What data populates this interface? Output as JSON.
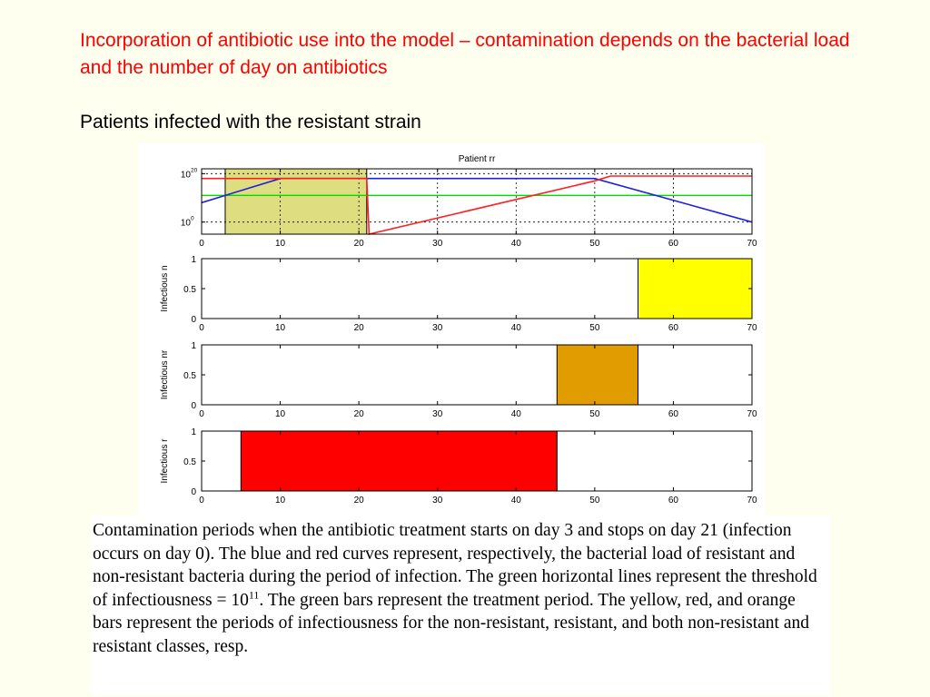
{
  "slide": {
    "title": "Incorporation of antibiotic use into the model – contamination depends on the bacterial load and the number of day on antibiotics",
    "subtitle": "Patients infected with the resistant strain"
  },
  "caption": {
    "part1": "Contamination periods when the antibiotic treatment starts on day 3 and stops on day 21 (infection occurs on day 0). The blue and red curves represent, respectively, the bacterial load of resistant and non-resistant bacteria during the period of infection. The green horizontal lines represent the threshold of infectiousness = 10",
    "exponent": "11",
    "part2": ". The green bars represent the treatment period. The yellow, red, and orange bars represent the periods of infectiousness for the non-resistant, resistant, and both non-resistant and resistant classes, resp."
  },
  "colors": {
    "title": "#ff0000",
    "treatment": "#dede80",
    "resistant_curve": "#2020e0",
    "nonresistant_curve": "#ff2020",
    "threshold": "#00dd00",
    "bar_n": "#ffff00",
    "bar_nr": "#e09c00",
    "bar_r": "#ff0000"
  },
  "chart_data": [
    {
      "type": "line",
      "title": "Patient rr",
      "xlim": [
        0,
        70
      ],
      "x_ticks": [
        0,
        10,
        20,
        30,
        40,
        50,
        60,
        70
      ],
      "y_scale": "log",
      "ylim_exp": [
        -5,
        22
      ],
      "y_ticks": [
        {
          "exp": 20,
          "label": "10",
          "sup": "20"
        },
        {
          "exp": 0,
          "label": "10",
          "sup": "0"
        }
      ],
      "grid": "dotted, at x=10,20,30,40,50,60 and y=10^20, 10^0",
      "treatment_period": [
        3,
        21
      ],
      "threshold_exp": 11,
      "series": [
        {
          "id": "resistant",
          "color": "#2020e0",
          "points": [
            [
              0,
              8
            ],
            [
              10,
              18
            ],
            [
              20,
              18
            ],
            [
              50,
              18
            ],
            [
              70,
              0
            ]
          ]
        },
        {
          "id": "non_resistant",
          "color": "#ff2020",
          "points": [
            [
              0,
              18
            ],
            [
              21,
              18
            ],
            [
              21.3,
              -5
            ],
            [
              50,
              17
            ],
            [
              52,
              19
            ],
            [
              70,
              19
            ]
          ]
        }
      ]
    },
    {
      "type": "bar",
      "ylabel": "Infectious n",
      "xlim": [
        0,
        70
      ],
      "ylim": [
        0,
        1
      ],
      "x_ticks": [
        0,
        10,
        20,
        30,
        40,
        50,
        60,
        70
      ],
      "y_ticks": [
        "0",
        "0.5",
        "1"
      ],
      "bars": [
        {
          "start": 55.5,
          "end": 70,
          "value": 1,
          "color": "#ffff00"
        }
      ]
    },
    {
      "type": "bar",
      "ylabel": "Infectious nr",
      "xlim": [
        0,
        70
      ],
      "ylim": [
        0,
        1
      ],
      "x_ticks": [
        0,
        10,
        20,
        30,
        40,
        50,
        60,
        70
      ],
      "y_ticks": [
        "0",
        "0.5",
        "1"
      ],
      "bars": [
        {
          "start": 45.2,
          "end": 55.5,
          "value": 1,
          "color": "#e09c00"
        }
      ]
    },
    {
      "type": "bar",
      "ylabel": "Infectious r",
      "xlim": [
        0,
        70
      ],
      "ylim": [
        0,
        1
      ],
      "x_ticks": [
        0,
        10,
        20,
        30,
        40,
        50,
        60,
        70
      ],
      "y_ticks": [
        "0",
        "0.5",
        "1"
      ],
      "bars": [
        {
          "start": 5,
          "end": 45.2,
          "value": 1,
          "color": "#ff0000"
        }
      ]
    }
  ]
}
